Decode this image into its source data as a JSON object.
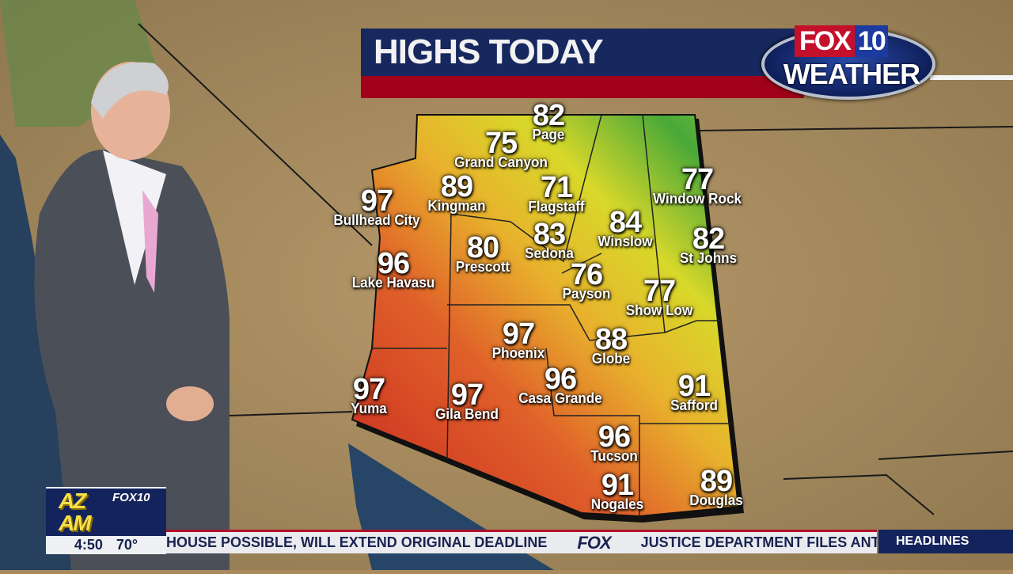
{
  "header": {
    "title": "HIGHS TODAY",
    "logo_fox": "FOX",
    "logo_10": "10",
    "logo_weather": "WEATHER"
  },
  "cities": [
    {
      "name": "Page",
      "temp": "82"
    },
    {
      "name": "Grand Canyon",
      "temp": "75"
    },
    {
      "name": "Kingman",
      "temp": "89"
    },
    {
      "name": "Flagstaff",
      "temp": "71"
    },
    {
      "name": "Bullhead City",
      "temp": "97"
    },
    {
      "name": "Window Rock",
      "temp": "77"
    },
    {
      "name": "Winslow",
      "temp": "84"
    },
    {
      "name": "Sedona",
      "temp": "83"
    },
    {
      "name": "Prescott",
      "temp": "80"
    },
    {
      "name": "St Johns",
      "temp": "82"
    },
    {
      "name": "Lake Havasu",
      "temp": "96"
    },
    {
      "name": "Payson",
      "temp": "76"
    },
    {
      "name": "Show Low",
      "temp": "77"
    },
    {
      "name": "Phoenix",
      "temp": "97"
    },
    {
      "name": "Globe",
      "temp": "88"
    },
    {
      "name": "Casa Grande",
      "temp": "96"
    },
    {
      "name": "Safford",
      "temp": "91"
    },
    {
      "name": "Yuma",
      "temp": "97"
    },
    {
      "name": "Gila Bend",
      "temp": "97"
    },
    {
      "name": "Tucson",
      "temp": "96"
    },
    {
      "name": "Nogales",
      "temp": "91"
    },
    {
      "name": "Douglas",
      "temp": "89"
    }
  ],
  "show": {
    "logo_text": "AZ AM",
    "logo_station": "FOX10",
    "time": "4:50",
    "temperature": "70°"
  },
  "ticker": {
    "text_left": "HOUSE POSSIBLE, WILL EXTEND ORIGINAL DEADLINE",
    "separator": "FOX",
    "text_right": "JUSTICE DEPARTMENT FILES ANTITR",
    "section": "HEADLINES"
  },
  "colors": {
    "navy": "#17285e",
    "red": "#a0001a",
    "hot": "#d8432a",
    "mild": "#e8d030",
    "cool": "#3aa83a"
  }
}
